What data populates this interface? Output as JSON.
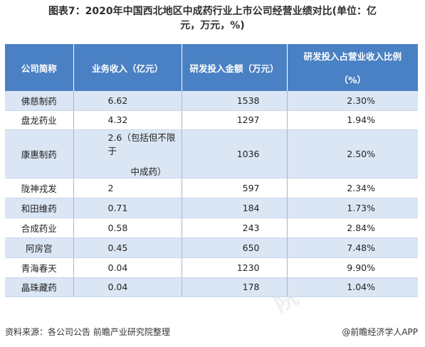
{
  "title_line1": "图表7：2020年中国西北地区中成药行业上市公司经营业绩对比(单位：亿",
  "title_line2": "元，万元，%)",
  "headers": {
    "col1": "公司简称",
    "col2": "业务收入（亿元）",
    "col3": "研发投入金额（万元）",
    "col4_line1": "研发投入占营业收入比例",
    "col4_line2": "（%）"
  },
  "rows": [
    {
      "company": "佛慈制药",
      "revenue": "6.62",
      "revenue2": "",
      "rd": "1538",
      "ratio": "2.30%"
    },
    {
      "company": "盘龙药业",
      "revenue": "4.32",
      "revenue2": "",
      "rd": "1297",
      "ratio": "1.94%"
    },
    {
      "company": "康惠制药",
      "revenue": "2.6（包括但不限于",
      "revenue2": "中成药）",
      "rd": "1036",
      "ratio": "2.50%"
    },
    {
      "company": "陇神戎发",
      "revenue": "2",
      "revenue2": "",
      "rd": "597",
      "ratio": "2.34%"
    },
    {
      "company": "和田维药",
      "revenue": "0.71",
      "revenue2": "",
      "rd": "184",
      "ratio": "1.73%"
    },
    {
      "company": "合成药业",
      "revenue": "0.58",
      "revenue2": "",
      "rd": "243",
      "ratio": "2.84%"
    },
    {
      "company": "阿房宫",
      "revenue": "0.45",
      "revenue2": "",
      "rd": "650",
      "ratio": "7.48%"
    },
    {
      "company": "青海春天",
      "revenue": "0.04",
      "revenue2": "",
      "rd": "1230",
      "ratio": "9.90%"
    },
    {
      "company": "晶珠藏药",
      "revenue": "0.04",
      "revenue2": "",
      "rd": "178",
      "ratio": "1.04%"
    }
  ],
  "footer": {
    "source": "资料来源：各公司公告 前瞻产业研究院整理",
    "brand": "@前瞻经济学人APP"
  },
  "watermark_text": "前瞻产业研究院",
  "colors": {
    "header_bg": "#4a81c4",
    "stripe": "#dbe6f4"
  }
}
